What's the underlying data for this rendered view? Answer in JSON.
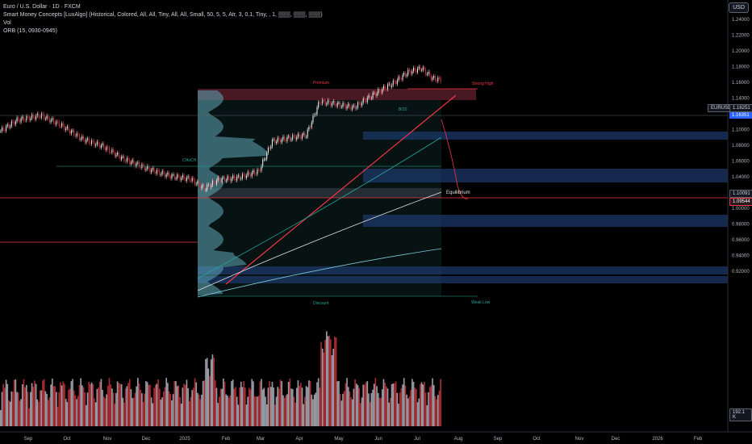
{
  "legend": {
    "symbol": "Euro / U.S. Dollar · 1D · FXCM",
    "indicator1": "Smart Money Concepts [LuxAlgo] (Historical, Colored, All, All, Tiny, All, All, Small, 50, 5, 5, Atr, 3, 0.1, Tiny, , 1, ▒▒▒, ▒▒▒, ▒▒▒)",
    "indicator2": "Vol",
    "indicator3": "ORB (15, 0930-0945)"
  },
  "currency_button": "USD",
  "price_axis": {
    "ticks": [
      "1.24000",
      "1.22000",
      "1.20000",
      "1.18000",
      "1.16000",
      "1.14000",
      "1.12000",
      "1.10000",
      "1.08000",
      "1.06000",
      "1.04000",
      "1.02000",
      "1.00000",
      "0.98000",
      "0.96000",
      "0.94000",
      "0.92000"
    ]
  },
  "time_axis": {
    "labels": [
      "Sep",
      "Oct",
      "Nov",
      "Dec",
      "2025",
      "Feb",
      "Mar",
      "Apr",
      "May",
      "Jun",
      "Jul",
      "Aug",
      "Sep",
      "Oct",
      "Nov",
      "Dec",
      "2026",
      "Feb"
    ]
  },
  "price_tags": {
    "symbol_tag": "EURUSD",
    "last_price": "1.16251",
    "last_price2": "1.16351",
    "level_1": "1.10091",
    "level_2": "1.09544",
    "volume": "192.1 K"
  },
  "annotations": {
    "premium": "Premium",
    "equilibrium": "Equilibrium",
    "discount": "Discount",
    "strong_high": "Strong High",
    "weak_low": "Weak Low",
    "choch": "CHoCH",
    "bos": "BOS"
  },
  "colors": {
    "background": "#000000",
    "up": "#e8e8e8",
    "down": "#c2333b",
    "premium_zone": "#5a1f2b",
    "discount_zone": "#0f3a3a",
    "order_block": "#1c3a6e",
    "trendline": "#f23645",
    "accent_blue": "#2962ff"
  }
}
